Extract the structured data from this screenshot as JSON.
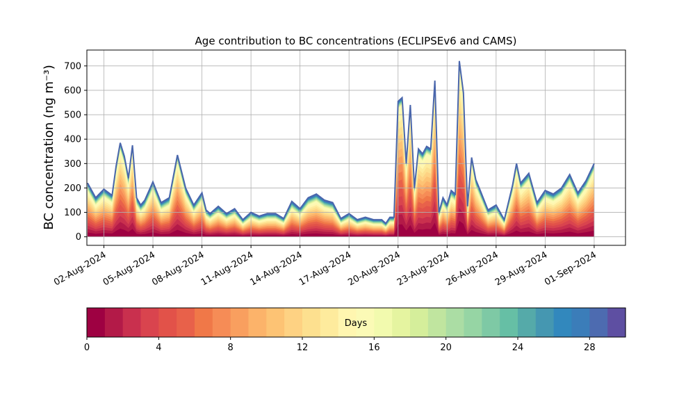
{
  "chart_data": {
    "type": "area",
    "title": "Age contribution to BC concentrations (ECLIPSEv6 and CAMS)",
    "ylabel": "BC concentration (ng m⁻³)",
    "xlabel": "",
    "ylim": [
      -35,
      765
    ],
    "xlim": [
      "2024-07-31T23:00",
      "2024-09-02T22:00"
    ],
    "grid": true,
    "x_tick_labels": [
      "02-Aug-2024",
      "05-Aug-2024",
      "08-Aug-2024",
      "11-Aug-2024",
      "14-Aug-2024",
      "17-Aug-2024",
      "20-Aug-2024",
      "23-Aug-2024",
      "26-Aug-2024",
      "29-Aug-2024",
      "01-Sep-2024"
    ],
    "x_tick_dates": [
      "2024-08-02",
      "2024-08-05",
      "2024-08-08",
      "2024-08-11",
      "2024-08-14",
      "2024-08-17",
      "2024-08-20",
      "2024-08-23",
      "2024-08-26",
      "2024-08-29",
      "2024-09-01"
    ],
    "y_ticks": [
      0,
      100,
      200,
      300,
      400,
      500,
      600,
      700
    ],
    "total_series": {
      "dates": [
        "2024-08-01T00:00",
        "2024-08-01T12:00",
        "2024-08-02T00:00",
        "2024-08-02T12:00",
        "2024-08-02T18:00",
        "2024-08-03T00:00",
        "2024-08-03T06:00",
        "2024-08-03T12:00",
        "2024-08-03T18:00",
        "2024-08-04T00:00",
        "2024-08-04T06:00",
        "2024-08-04T12:00",
        "2024-08-05T00:00",
        "2024-08-05T12:00",
        "2024-08-06T00:00",
        "2024-08-06T12:00",
        "2024-08-07T00:00",
        "2024-08-07T12:00",
        "2024-08-08T00:00",
        "2024-08-08T06:00",
        "2024-08-08T12:00",
        "2024-08-09T00:00",
        "2024-08-09T12:00",
        "2024-08-10T00:00",
        "2024-08-10T12:00",
        "2024-08-11T00:00",
        "2024-08-11T12:00",
        "2024-08-12T00:00",
        "2024-08-12T12:00",
        "2024-08-13T00:00",
        "2024-08-13T12:00",
        "2024-08-14T00:00",
        "2024-08-14T12:00",
        "2024-08-15T00:00",
        "2024-08-15T12:00",
        "2024-08-16T00:00",
        "2024-08-16T12:00",
        "2024-08-17T00:00",
        "2024-08-17T12:00",
        "2024-08-18T00:00",
        "2024-08-18T12:00",
        "2024-08-19T00:00",
        "2024-08-19T06:00",
        "2024-08-19T12:00",
        "2024-08-19T18:00",
        "2024-08-20T00:00",
        "2024-08-20T06:00",
        "2024-08-20T12:00",
        "2024-08-20T18:00",
        "2024-08-21T00:00",
        "2024-08-21T06:00",
        "2024-08-21T12:00",
        "2024-08-21T18:00",
        "2024-08-22T00:00",
        "2024-08-22T06:00",
        "2024-08-22T12:00",
        "2024-08-22T18:00",
        "2024-08-23T00:00",
        "2024-08-23T06:00",
        "2024-08-23T12:00",
        "2024-08-23T18:00",
        "2024-08-24T00:00",
        "2024-08-24T06:00",
        "2024-08-24T12:00",
        "2024-08-24T18:00",
        "2024-08-25T00:00",
        "2024-08-25T12:00",
        "2024-08-26T00:00",
        "2024-08-26T12:00",
        "2024-08-27T00:00",
        "2024-08-27T06:00",
        "2024-08-27T12:00",
        "2024-08-28T00:00",
        "2024-08-28T12:00",
        "2024-08-29T00:00",
        "2024-08-29T12:00",
        "2024-08-30T00:00",
        "2024-08-30T12:00",
        "2024-08-31T00:00",
        "2024-08-31T12:00",
        "2024-09-01T00:00"
      ],
      "values": [
        220,
        160,
        195,
        170,
        290,
        385,
        330,
        240,
        375,
        160,
        130,
        150,
        225,
        140,
        160,
        335,
        200,
        130,
        180,
        110,
        95,
        125,
        95,
        115,
        70,
        100,
        85,
        95,
        95,
        75,
        145,
        115,
        160,
        175,
        150,
        140,
        75,
        95,
        70,
        80,
        70,
        70,
        55,
        80,
        80,
        555,
        570,
        300,
        540,
        200,
        360,
        340,
        370,
        360,
        640,
        100,
        160,
        130,
        190,
        175,
        720,
        590,
        125,
        325,
        235,
        195,
        110,
        130,
        70,
        210,
        300,
        220,
        260,
        140,
        190,
        175,
        200,
        255,
        180,
        230,
        300
      ]
    },
    "colorbar": {
      "label": "Days",
      "range": [
        0,
        30
      ],
      "ticks": [
        0,
        4,
        8,
        12,
        16,
        20,
        24,
        28
      ],
      "colors": [
        "#9e0142",
        "#b31a48",
        "#c9304e",
        "#d9444e",
        "#e25249",
        "#e8614a",
        "#f07848",
        "#f68c56",
        "#f99f5f",
        "#fcb36a",
        "#fdc374",
        "#fed283",
        "#fde08f",
        "#feeb9d",
        "#fff6b0",
        "#fbfab6",
        "#f2faae",
        "#e5f4a0",
        "#d5ee9b",
        "#c0e59f",
        "#abdda4",
        "#96d5a4",
        "#7ec9a5",
        "#66bfa5",
        "#55aaa9",
        "#4597b1",
        "#3288bd",
        "#3b7db9",
        "#4d6bb0",
        "#5e4fa2"
      ]
    }
  }
}
